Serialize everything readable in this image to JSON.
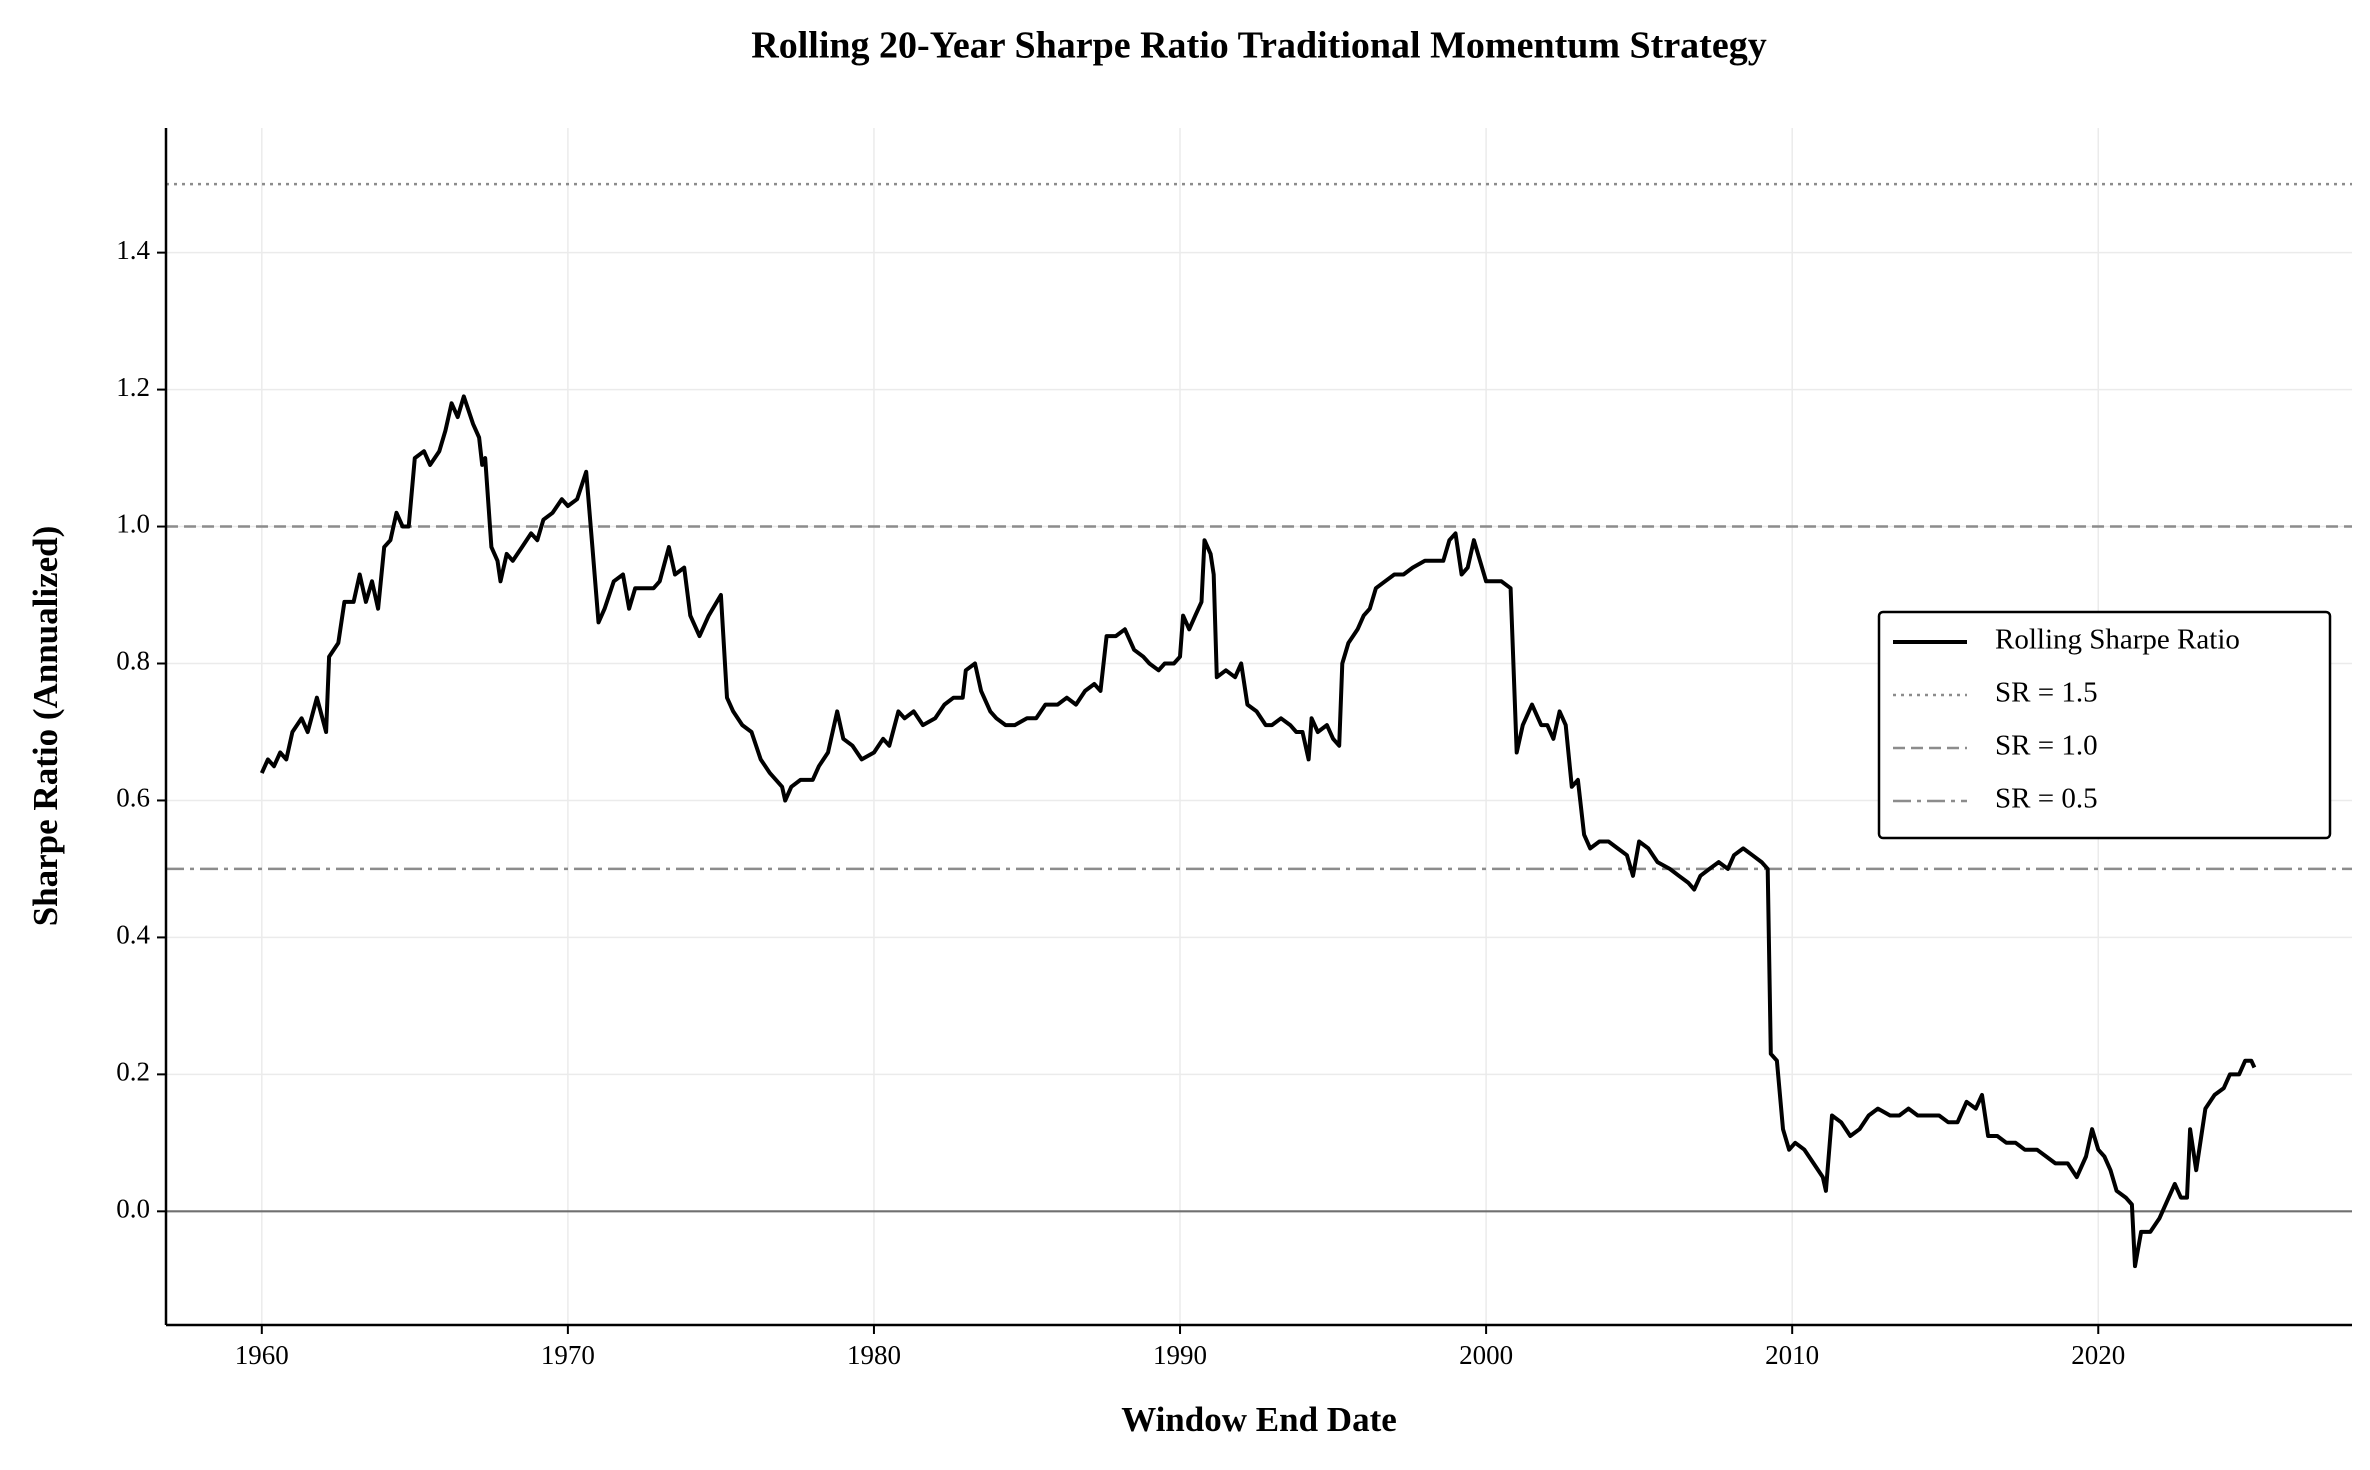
{
  "chart_data": {
    "type": "line",
    "title": "Rolling 20-Year Sharpe Ratio Traditional Momentum Strategy",
    "x_label": "Window End Date",
    "y_label": "Sharpe Ratio (Annualized)",
    "xlim": [
      1956.87,
      2028.29
    ],
    "ylim": [
      -0.166,
      1.582
    ],
    "xticks": [
      1960,
      1970,
      1980,
      1990,
      2000,
      2010,
      2020
    ],
    "yticks": [
      {
        "value": 0,
        "label": "0.0"
      },
      0.2,
      0.4,
      0.6,
      0.8,
      {
        "value": 1,
        "label": "1.0"
      },
      1.2,
      1.4
    ],
    "grid": true,
    "legend": "right",
    "zero_line": {
      "value": 0,
      "color": "#707070"
    },
    "reference_lines": [
      {
        "name": "SR = 1.5",
        "value": 1.5,
        "color": "#8c8c8c",
        "style": "dotted"
      },
      {
        "name": "SR = 1.0",
        "value": 1.0,
        "color": "#8c8c8c",
        "style": "dashed"
      },
      {
        "name": "SR = 0.5",
        "value": 0.5,
        "color": "#8c8c8c",
        "style": "dashdot"
      }
    ],
    "x": [
      1960.0,
      1960.2,
      1960.4,
      1960.6,
      1960.8,
      1961.0,
      1961.3,
      1961.5,
      1961.8,
      1962.1,
      1962.2,
      1962.5,
      1962.7,
      1963.0,
      1963.2,
      1963.4,
      1963.6,
      1963.8,
      1964.0,
      1964.2,
      1964.4,
      1964.6,
      1964.8,
      1965.0,
      1965.3,
      1965.5,
      1965.8,
      1966.0,
      1966.2,
      1966.4,
      1966.6,
      1966.9,
      1967.1,
      1967.2,
      1967.3,
      1967.5,
      1967.7,
      1967.8,
      1968.0,
      1968.2,
      1968.5,
      1968.8,
      1969.0,
      1969.2,
      1969.5,
      1969.8,
      1970.0,
      1970.3,
      1970.6,
      1970.8,
      1971.0,
      1971.2,
      1971.5,
      1971.8,
      1972.0,
      1972.2,
      1972.5,
      1972.8,
      1973.0,
      1973.3,
      1973.5,
      1973.8,
      1974.0,
      1974.3,
      1974.6,
      1975.0,
      1975.2,
      1975.4,
      1975.7,
      1976.0,
      1976.3,
      1976.6,
      1977.0,
      1977.1,
      1977.3,
      1977.6,
      1978.0,
      1978.2,
      1978.5,
      1978.8,
      1979.0,
      1979.3,
      1979.6,
      1980.0,
      1980.3,
      1980.5,
      1980.8,
      1981.0,
      1981.3,
      1981.6,
      1982.0,
      1982.3,
      1982.6,
      1982.9,
      1983.0,
      1983.3,
      1983.5,
      1983.8,
      1984.0,
      1984.3,
      1984.6,
      1985.0,
      1985.3,
      1985.6,
      1986.0,
      1986.3,
      1986.6,
      1986.9,
      1987.2,
      1987.4,
      1987.6,
      1987.9,
      1988.2,
      1988.5,
      1988.8,
      1989.0,
      1989.3,
      1989.5,
      1989.8,
      1990.0,
      1990.1,
      1990.3,
      1990.5,
      1990.7,
      1990.8,
      1991.0,
      1991.1,
      1991.2,
      1991.5,
      1991.8,
      1992.0,
      1992.2,
      1992.5,
      1992.8,
      1993.0,
      1993.3,
      1993.6,
      1993.8,
      1994.0,
      1994.2,
      1994.3,
      1994.5,
      1994.8,
      1995.0,
      1995.2,
      1995.3,
      1995.5,
      1995.8,
      1996.0,
      1996.2,
      1996.4,
      1996.7,
      1997.0,
      1997.3,
      1997.6,
      1998.0,
      1998.3,
      1998.6,
      1998.8,
      1999.0,
      1999.2,
      1999.4,
      1999.6,
      1999.8,
      2000.0,
      2000.2,
      2000.5,
      2000.8,
      2001.0,
      2001.2,
      2001.5,
      2001.8,
      2002.0,
      2002.2,
      2002.4,
      2002.6,
      2002.8,
      2003.0,
      2003.2,
      2003.4,
      2003.7,
      2004.0,
      2004.3,
      2004.6,
      2004.8,
      2005.0,
      2005.3,
      2005.6,
      2006.0,
      2006.3,
      2006.6,
      2006.8,
      2007.0,
      2007.3,
      2007.6,
      2007.9,
      2008.1,
      2008.4,
      2008.7,
      2009.0,
      2009.2,
      2009.3,
      2009.5,
      2009.7,
      2009.9,
      2010.1,
      2010.4,
      2010.7,
      2011.0,
      2011.1,
      2011.3,
      2011.6,
      2011.9,
      2012.2,
      2012.5,
      2012.8,
      2013.2,
      2013.5,
      2013.8,
      2014.1,
      2014.5,
      2014.8,
      2015.1,
      2015.4,
      2015.7,
      2016.0,
      2016.2,
      2016.4,
      2016.7,
      2017.0,
      2017.3,
      2017.6,
      2018.0,
      2018.3,
      2018.6,
      2019.0,
      2019.3,
      2019.6,
      2019.8,
      2020.0,
      2020.2,
      2020.4,
      2020.6,
      2020.9,
      2021.1,
      2021.2,
      2021.4,
      2021.7,
      2022.0,
      2022.3,
      2022.5,
      2022.7,
      2022.9,
      2023.0,
      2023.2,
      2023.5,
      2023.8,
      2024.1,
      2024.3,
      2024.6,
      2024.8,
      2025.0,
      2025.1
    ],
    "series": [
      {
        "name": "Rolling Sharpe Ratio",
        "color": "#000000",
        "values": [
          0.64,
          0.66,
          0.65,
          0.67,
          0.66,
          0.7,
          0.72,
          0.7,
          0.75,
          0.7,
          0.81,
          0.83,
          0.89,
          0.89,
          0.93,
          0.89,
          0.92,
          0.88,
          0.97,
          0.98,
          1.02,
          1.0,
          1.0,
          1.1,
          1.11,
          1.09,
          1.11,
          1.14,
          1.18,
          1.16,
          1.19,
          1.15,
          1.13,
          1.09,
          1.1,
          0.97,
          0.95,
          0.92,
          0.96,
          0.95,
          0.97,
          0.99,
          0.98,
          1.01,
          1.02,
          1.04,
          1.03,
          1.04,
          1.08,
          0.97,
          0.86,
          0.88,
          0.92,
          0.93,
          0.88,
          0.91,
          0.91,
          0.91,
          0.92,
          0.97,
          0.93,
          0.94,
          0.87,
          0.84,
          0.87,
          0.9,
          0.75,
          0.73,
          0.71,
          0.7,
          0.66,
          0.64,
          0.62,
          0.6,
          0.62,
          0.63,
          0.63,
          0.65,
          0.67,
          0.73,
          0.69,
          0.68,
          0.66,
          0.67,
          0.69,
          0.68,
          0.73,
          0.72,
          0.73,
          0.71,
          0.72,
          0.74,
          0.75,
          0.75,
          0.79,
          0.8,
          0.76,
          0.73,
          0.72,
          0.71,
          0.71,
          0.72,
          0.72,
          0.74,
          0.74,
          0.75,
          0.74,
          0.76,
          0.77,
          0.76,
          0.84,
          0.84,
          0.85,
          0.82,
          0.81,
          0.8,
          0.79,
          0.8,
          0.8,
          0.81,
          0.87,
          0.85,
          0.87,
          0.89,
          0.98,
          0.96,
          0.93,
          0.78,
          0.79,
          0.78,
          0.8,
          0.74,
          0.73,
          0.71,
          0.71,
          0.72,
          0.71,
          0.7,
          0.7,
          0.66,
          0.72,
          0.7,
          0.71,
          0.69,
          0.68,
          0.8,
          0.83,
          0.85,
          0.87,
          0.88,
          0.91,
          0.92,
          0.93,
          0.93,
          0.94,
          0.95,
          0.95,
          0.95,
          0.98,
          0.99,
          0.93,
          0.94,
          0.98,
          0.95,
          0.92,
          0.92,
          0.92,
          0.91,
          0.67,
          0.71,
          0.74,
          0.71,
          0.71,
          0.69,
          0.73,
          0.71,
          0.62,
          0.63,
          0.55,
          0.53,
          0.54,
          0.54,
          0.53,
          0.52,
          0.49,
          0.54,
          0.53,
          0.51,
          0.5,
          0.49,
          0.48,
          0.47,
          0.49,
          0.5,
          0.51,
          0.5,
          0.52,
          0.53,
          0.52,
          0.51,
          0.5,
          0.23,
          0.22,
          0.12,
          0.09,
          0.1,
          0.09,
          0.07,
          0.05,
          0.03,
          0.14,
          0.13,
          0.11,
          0.12,
          0.14,
          0.15,
          0.14,
          0.14,
          0.15,
          0.14,
          0.14,
          0.14,
          0.13,
          0.13,
          0.16,
          0.15,
          0.17,
          0.11,
          0.11,
          0.1,
          0.1,
          0.09,
          0.09,
          0.08,
          0.07,
          0.07,
          0.05,
          0.08,
          0.12,
          0.09,
          0.08,
          0.06,
          0.03,
          0.02,
          0.01,
          -0.08,
          -0.03,
          -0.03,
          -0.01,
          0.02,
          0.04,
          0.02,
          0.02,
          0.12,
          0.06,
          0.15,
          0.17,
          0.18,
          0.2,
          0.2,
          0.22,
          0.22,
          0.21
        ]
      }
    ]
  }
}
